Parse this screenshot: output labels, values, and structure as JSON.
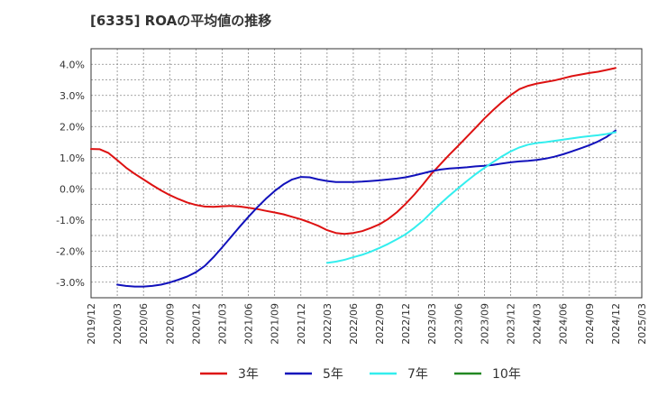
{
  "chart_data": {
    "type": "line",
    "title": "[6335]  ROAの平均値の推移",
    "xlabel": "",
    "ylabel": "",
    "x_ticks": [
      "2019/12",
      "2020/03",
      "2020/06",
      "2020/09",
      "2020/12",
      "2021/03",
      "2021/06",
      "2021/09",
      "2021/12",
      "2022/03",
      "2022/06",
      "2022/09",
      "2022/12",
      "2023/03",
      "2023/06",
      "2023/09",
      "2023/12",
      "2024/03",
      "2024/06",
      "2024/09",
      "2024/12",
      "2025/03"
    ],
    "y_ticks": [
      "4.0%",
      "3.0%",
      "2.0%",
      "1.0%",
      "0.0%",
      "-1.0%",
      "-2.0%",
      "-3.0%"
    ],
    "ylim": [
      -3.5,
      4.5
    ],
    "grid": true,
    "legend_position": "bottom",
    "series": [
      {
        "name": "3年",
        "color": "#dd1111",
        "x": [
          "2019/12",
          "2020/01",
          "2020/02",
          "2020/03",
          "2020/04",
          "2020/05",
          "2020/06",
          "2020/07",
          "2020/08",
          "2020/09",
          "2020/10",
          "2020/11",
          "2020/12",
          "2021/01",
          "2021/02",
          "2021/03",
          "2021/04",
          "2021/05",
          "2021/06",
          "2021/07",
          "2021/08",
          "2021/09",
          "2021/10",
          "2021/11",
          "2021/12",
          "2022/01",
          "2022/02",
          "2022/03",
          "2022/04",
          "2022/05",
          "2022/06",
          "2022/07",
          "2022/08",
          "2022/09",
          "2022/10",
          "2022/11",
          "2022/12",
          "2023/01",
          "2023/02",
          "2023/03",
          "2023/04",
          "2023/05",
          "2023/06",
          "2023/07",
          "2023/08",
          "2023/09",
          "2023/10",
          "2023/11",
          "2023/12",
          "2024/01",
          "2024/02",
          "2024/03",
          "2024/04",
          "2024/05",
          "2024/06",
          "2024/07",
          "2024/08",
          "2024/09",
          "2024/10",
          "2024/11",
          "2024/12"
        ],
        "values": [
          1.28,
          1.27,
          1.15,
          0.92,
          0.68,
          0.48,
          0.3,
          0.12,
          -0.05,
          -0.2,
          -0.33,
          -0.44,
          -0.52,
          -0.57,
          -0.58,
          -0.56,
          -0.55,
          -0.57,
          -0.61,
          -0.65,
          -0.71,
          -0.76,
          -0.82,
          -0.9,
          -0.98,
          -1.08,
          -1.19,
          -1.33,
          -1.42,
          -1.45,
          -1.42,
          -1.36,
          -1.26,
          -1.14,
          -0.97,
          -0.75,
          -0.48,
          -0.18,
          0.15,
          0.5,
          0.8,
          1.1,
          1.38,
          1.67,
          1.96,
          2.26,
          2.53,
          2.78,
          3.01,
          3.2,
          3.31,
          3.38,
          3.43,
          3.48,
          3.55,
          3.62,
          3.67,
          3.72,
          3.76,
          3.82,
          3.88
        ]
      },
      {
        "name": "5年",
        "color": "#1111bb",
        "x": [
          "2020/03",
          "2020/04",
          "2020/05",
          "2020/06",
          "2020/07",
          "2020/08",
          "2020/09",
          "2020/10",
          "2020/11",
          "2020/12",
          "2021/01",
          "2021/02",
          "2021/03",
          "2021/04",
          "2021/05",
          "2021/06",
          "2021/07",
          "2021/08",
          "2021/09",
          "2021/10",
          "2021/11",
          "2021/12",
          "2022/01",
          "2022/02",
          "2022/03",
          "2022/04",
          "2022/05",
          "2022/06",
          "2022/07",
          "2022/08",
          "2022/09",
          "2022/10",
          "2022/11",
          "2022/12",
          "2023/01",
          "2023/02",
          "2023/03",
          "2023/04",
          "2023/05",
          "2023/06",
          "2023/07",
          "2023/08",
          "2023/09",
          "2023/10",
          "2023/11",
          "2023/12",
          "2024/01",
          "2024/02",
          "2024/03",
          "2024/04",
          "2024/05",
          "2024/06",
          "2024/07",
          "2024/08",
          "2024/09",
          "2024/10",
          "2024/11",
          "2024/12"
        ],
        "values": [
          -3.08,
          -3.12,
          -3.14,
          -3.14,
          -3.12,
          -3.08,
          -3.01,
          -2.92,
          -2.82,
          -2.68,
          -2.48,
          -2.2,
          -1.88,
          -1.55,
          -1.22,
          -0.9,
          -0.6,
          -0.32,
          -0.07,
          0.14,
          0.3,
          0.38,
          0.37,
          0.3,
          0.25,
          0.22,
          0.22,
          0.22,
          0.23,
          0.25,
          0.27,
          0.3,
          0.33,
          0.37,
          0.43,
          0.5,
          0.57,
          0.62,
          0.65,
          0.67,
          0.69,
          0.72,
          0.74,
          0.77,
          0.81,
          0.85,
          0.88,
          0.9,
          0.93,
          0.97,
          1.03,
          1.11,
          1.2,
          1.3,
          1.4,
          1.52,
          1.67,
          1.87
        ]
      },
      {
        "name": "7年",
        "color": "#33eeee",
        "x": [
          "2022/03",
          "2022/04",
          "2022/05",
          "2022/06",
          "2022/07",
          "2022/08",
          "2022/09",
          "2022/10",
          "2022/11",
          "2022/12",
          "2023/01",
          "2023/02",
          "2023/03",
          "2023/04",
          "2023/05",
          "2023/06",
          "2023/07",
          "2023/08",
          "2023/09",
          "2023/10",
          "2023/11",
          "2023/12",
          "2024/01",
          "2024/02",
          "2024/03",
          "2024/04",
          "2024/05",
          "2024/06",
          "2024/07",
          "2024/08",
          "2024/09",
          "2024/10",
          "2024/11",
          "2024/12"
        ],
        "values": [
          -2.38,
          -2.34,
          -2.28,
          -2.2,
          -2.12,
          -2.02,
          -1.9,
          -1.77,
          -1.62,
          -1.46,
          -1.25,
          -1.02,
          -0.74,
          -0.47,
          -0.22,
          0.02,
          0.25,
          0.47,
          0.67,
          0.86,
          1.04,
          1.2,
          1.33,
          1.42,
          1.47,
          1.5,
          1.54,
          1.58,
          1.62,
          1.66,
          1.69,
          1.72,
          1.76,
          1.82
        ]
      },
      {
        "name": "10年",
        "color": "#228822",
        "x": [],
        "values": []
      }
    ]
  }
}
